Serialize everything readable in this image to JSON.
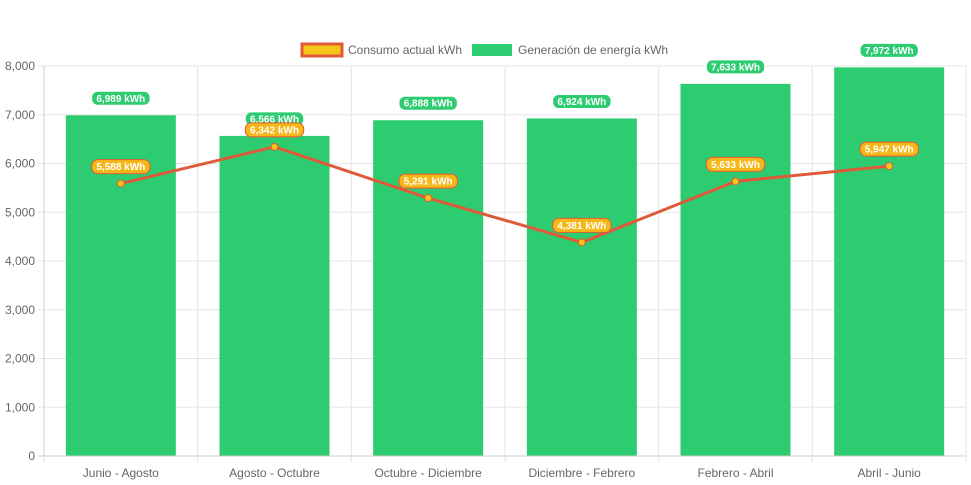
{
  "chart_data": {
    "type": "bar",
    "categories": [
      "Junio - Agosto",
      "Agosto - Octubre",
      "Octubre - Diciembre",
      "Diciembre - Febrero",
      "Febrero - Abril",
      "Abril - Junio"
    ],
    "series": [
      {
        "name": "Consumo actual kWh",
        "type": "line",
        "values": [
          5588,
          6342,
          5291,
          4381,
          5633,
          5947
        ],
        "labels": [
          "5,588 kWh",
          "6,342 kWh",
          "5,291 kWh",
          "4,381 kWh",
          "5,633 kWh",
          "5,947 kWh"
        ],
        "line_color": "#e05a3a",
        "fill_color": "#f5c518"
      },
      {
        "name": "Generación de energía kWh",
        "type": "bar",
        "values": [
          6989,
          6566,
          6888,
          6924,
          7633,
          7972
        ],
        "labels": [
          "6,989 kWh",
          "6,566 kWh",
          "6,888 kWh",
          "6,924 kWh",
          "7,633 kWh",
          "7,972 kWh"
        ],
        "color": "#2ecc71"
      }
    ],
    "ylim": [
      0,
      8000
    ],
    "yticks": [
      0,
      1000,
      2000,
      3000,
      4000,
      5000,
      6000,
      7000,
      8000
    ],
    "ytick_labels": [
      "0",
      "1,000",
      "2,000",
      "3,000",
      "4,000",
      "5,000",
      "6,000",
      "7,000",
      "8,000"
    ],
    "grid": true,
    "legend_position": "top-center"
  }
}
